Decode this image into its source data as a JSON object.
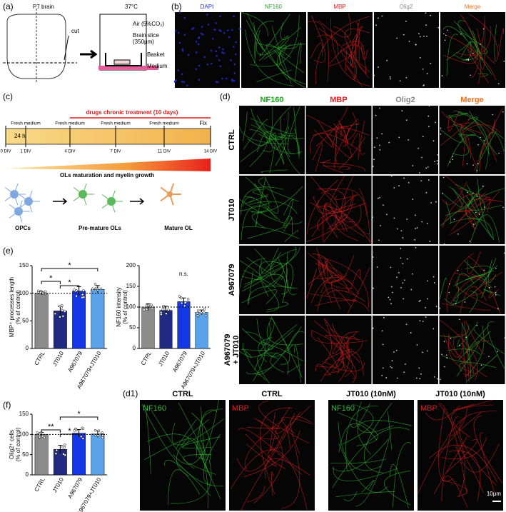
{
  "panel_a": {
    "label": "(a)",
    "brain": "P7 brain",
    "cut": "cut",
    "temp": "37°C",
    "air": "Air (5%CO₂)",
    "slice_1": "Brain slice",
    "slice_2": "(350μm)",
    "basket": "Basket",
    "medium": "Medium"
  },
  "panel_b": {
    "label": "(b)",
    "channels": [
      "DAPI",
      "NF160",
      "MBP",
      "Olig2",
      "Merge"
    ]
  },
  "panel_c": {
    "label": "(c)",
    "treatment": "drugs chronic treatment (10 days)",
    "fresh": [
      "Fresh medium",
      "Fresh medium",
      "Fresh medium",
      "Fresh medium"
    ],
    "first_day": "24 h",
    "fix": "Fix",
    "days": [
      "0 DIV",
      "1 DIV",
      "4 DIV",
      "7 DIV",
      "11 DIV",
      "14 DIV"
    ],
    "growth": "OLs maturation and myelin growth",
    "cells": [
      "OPCs",
      "Pre-mature OLs",
      "Mature OL"
    ]
  },
  "panel_d": {
    "label": "(d)",
    "columns": [
      "NF160",
      "MBP",
      "Olig2",
      "Merge"
    ],
    "rows": [
      "CTRL",
      "JT010",
      "A967079",
      "A967079\n+ JT010"
    ]
  },
  "panel_d1": {
    "label": "(d1)",
    "titles": [
      "CTRL",
      "CTRL",
      "JT010 (10nM)",
      "JT010 (10nM)"
    ],
    "channels": [
      "NF160",
      "MBP",
      "NF160",
      "MBP"
    ],
    "scale": "10μm"
  },
  "panel_e": {
    "label": "(e)"
  },
  "panel_f": {
    "label": "(f)"
  },
  "chart_data": [
    {
      "type": "bar",
      "y_label": [
        "MBP⁺ processes length",
        "(% of control)"
      ],
      "categories": [
        "CTRL",
        "JT010",
        "A967079",
        "A967079+JT010"
      ],
      "values": [
        100,
        68,
        104,
        107
      ],
      "errors": [
        3,
        8,
        8,
        7
      ],
      "colors": [
        "#8c8c8c",
        "#1f2a80",
        "#1438e6",
        "#5aa2ea"
      ],
      "ylim": [
        0,
        150
      ],
      "yticks": [
        0,
        50,
        100,
        150
      ],
      "reference": 100,
      "annotations": [
        "*",
        "*",
        "*"
      ]
    },
    {
      "type": "bar",
      "y_label": [
        "NF160 intensity",
        "(% of control)"
      ],
      "categories": [
        "CTRL",
        "JT010",
        "A967079",
        "A967079+JT010"
      ],
      "values": [
        100,
        92,
        113,
        87
      ],
      "errors": [
        8,
        10,
        9,
        6
      ],
      "colors": [
        "#8c8c8c",
        "#1f2a80",
        "#1438e6",
        "#5aa2ea"
      ],
      "ylim": [
        0,
        200
      ],
      "yticks": [
        0,
        50,
        100,
        150,
        200
      ],
      "reference": 100,
      "annotations": [
        "n.s."
      ]
    },
    {
      "type": "bar",
      "y_label": [
        "Olig2⁺ cells",
        "(% of control)"
      ],
      "categories": [
        "CTRL",
        "JT010",
        "A967079",
        "A967079+JT010"
      ],
      "values": [
        100,
        63,
        103,
        101
      ],
      "errors": [
        5,
        10,
        9,
        8
      ],
      "colors": [
        "#8c8c8c",
        "#1f2a80",
        "#1438e6",
        "#5aa2ea"
      ],
      "ylim": [
        0,
        150
      ],
      "yticks": [
        0,
        50,
        100,
        150
      ],
      "reference": 100,
      "annotations": [
        "**",
        "*",
        "*"
      ]
    }
  ]
}
